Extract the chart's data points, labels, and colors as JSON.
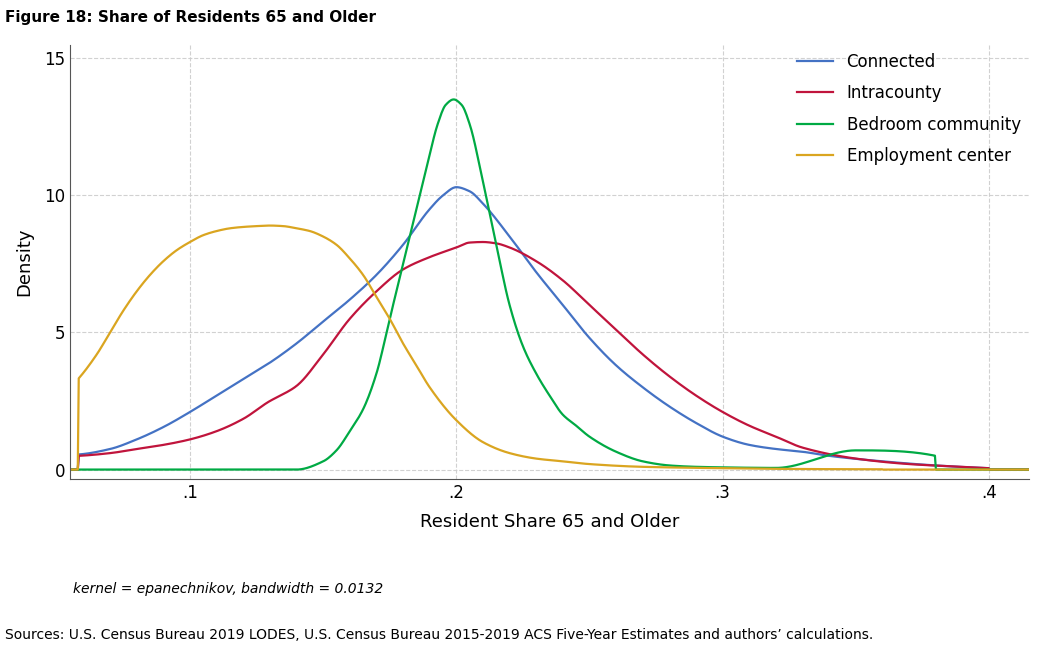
{
  "title": "Figure 18: Share of Residents 65 and Older",
  "xlabel": "Resident Share 65 and Older",
  "ylabel": "Density",
  "footnote1": "kernel = epanechnikov, bandwidth = 0.0132",
  "footnote2": "Sources: U.S. Census Bureau 2019 LODES, U.S. Census Bureau 2015-2019 ACS Five-Year Estimates and authors’ calculations.",
  "xlim": [
    0.055,
    0.415
  ],
  "ylim": [
    -0.35,
    15.5
  ],
  "xticks": [
    0.1,
    0.2,
    0.3,
    0.4
  ],
  "xtick_labels": [
    ".1",
    ".2",
    ".3",
    ".4"
  ],
  "yticks": [
    0,
    5,
    10,
    15
  ],
  "ytick_labels": [
    "0",
    "5",
    "10",
    "15"
  ],
  "categories": [
    "Connected",
    "Intracounty",
    "Bedroom community",
    "Employment center"
  ],
  "colors": [
    "#4472C4",
    "#C0143C",
    "#00AA44",
    "#DAA520"
  ],
  "grid_color": "#cccccc",
  "grid_style": "--",
  "background_color": "#ffffff",
  "legend_loc": "upper right",
  "linewidth": 1.6,
  "connected": {
    "x": [
      0.058,
      0.07,
      0.08,
      0.09,
      0.1,
      0.11,
      0.12,
      0.13,
      0.14,
      0.15,
      0.16,
      0.17,
      0.18,
      0.19,
      0.195,
      0.2,
      0.205,
      0.21,
      0.22,
      0.23,
      0.24,
      0.25,
      0.26,
      0.27,
      0.28,
      0.29,
      0.3,
      0.31,
      0.32,
      0.33,
      0.34,
      0.36,
      0.38,
      0.4
    ],
    "y": [
      0.55,
      0.75,
      1.1,
      1.55,
      2.1,
      2.7,
      3.3,
      3.9,
      4.6,
      5.4,
      6.2,
      7.1,
      8.2,
      9.5,
      10.0,
      10.3,
      10.15,
      9.7,
      8.5,
      7.2,
      6.0,
      4.8,
      3.8,
      3.0,
      2.3,
      1.7,
      1.2,
      0.9,
      0.75,
      0.65,
      0.5,
      0.3,
      0.15,
      0.05
    ]
  },
  "intracounty": {
    "x": [
      0.058,
      0.07,
      0.08,
      0.09,
      0.1,
      0.11,
      0.12,
      0.13,
      0.135,
      0.14,
      0.15,
      0.16,
      0.17,
      0.18,
      0.19,
      0.2,
      0.205,
      0.21,
      0.215,
      0.22,
      0.23,
      0.24,
      0.25,
      0.26,
      0.27,
      0.28,
      0.29,
      0.3,
      0.31,
      0.32,
      0.33,
      0.35,
      0.37,
      0.39,
      0.4
    ],
    "y": [
      0.5,
      0.6,
      0.75,
      0.9,
      1.1,
      1.4,
      1.85,
      2.5,
      2.75,
      3.05,
      4.2,
      5.5,
      6.5,
      7.3,
      7.75,
      8.1,
      8.28,
      8.3,
      8.25,
      8.1,
      7.6,
      6.9,
      6.0,
      5.1,
      4.2,
      3.4,
      2.7,
      2.1,
      1.6,
      1.2,
      0.8,
      0.4,
      0.2,
      0.1,
      0.05
    ]
  },
  "bedroom": {
    "x": [
      0.14,
      0.15,
      0.155,
      0.16,
      0.165,
      0.17,
      0.175,
      0.18,
      0.185,
      0.19,
      0.193,
      0.196,
      0.199,
      0.202,
      0.205,
      0.21,
      0.215,
      0.22,
      0.225,
      0.23,
      0.235,
      0.24,
      0.245,
      0.25,
      0.26,
      0.27,
      0.28,
      0.29,
      0.3,
      0.32,
      0.35,
      0.38
    ],
    "y": [
      0.0,
      0.3,
      0.7,
      1.4,
      2.2,
      3.5,
      5.5,
      7.5,
      9.5,
      11.5,
      12.6,
      13.3,
      13.5,
      13.3,
      12.6,
      10.5,
      8.2,
      6.0,
      4.5,
      3.5,
      2.7,
      2.0,
      1.6,
      1.2,
      0.65,
      0.3,
      0.15,
      0.1,
      0.08,
      0.06,
      0.7,
      0.5
    ]
  },
  "employment": {
    "x": [
      0.058,
      0.065,
      0.07,
      0.075,
      0.08,
      0.085,
      0.09,
      0.095,
      0.1,
      0.105,
      0.11,
      0.115,
      0.12,
      0.125,
      0.13,
      0.135,
      0.14,
      0.145,
      0.15,
      0.155,
      0.16,
      0.165,
      0.17,
      0.175,
      0.18,
      0.185,
      0.19,
      0.2,
      0.21,
      0.22,
      0.23,
      0.24,
      0.25,
      0.27,
      0.3,
      0.33,
      0.36
    ],
    "y": [
      3.3,
      4.2,
      5.0,
      5.8,
      6.5,
      7.1,
      7.6,
      8.0,
      8.3,
      8.55,
      8.7,
      8.8,
      8.85,
      8.88,
      8.9,
      8.88,
      8.8,
      8.7,
      8.5,
      8.2,
      7.7,
      7.1,
      6.3,
      5.5,
      4.6,
      3.8,
      3.0,
      1.8,
      1.0,
      0.6,
      0.4,
      0.3,
      0.2,
      0.1,
      0.05,
      0.02,
      0.01
    ]
  }
}
